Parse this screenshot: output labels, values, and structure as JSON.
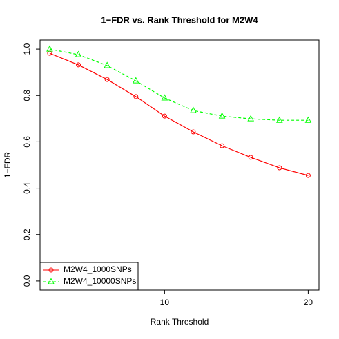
{
  "chart_data": {
    "type": "line",
    "title": "1−FDR vs. Rank Threshold for M2W4",
    "x_label": "Rank Threshold",
    "y_label": "1−FDR",
    "x": [
      2,
      4,
      6,
      8,
      10,
      12,
      14,
      16,
      18,
      20
    ],
    "series": [
      {
        "name": "M2W4_1000SNPs",
        "color": "#ff0000",
        "line_style": "solid",
        "marker": "circle",
        "values": [
          0.982,
          0.932,
          0.869,
          0.795,
          0.711,
          0.643,
          0.583,
          0.533,
          0.488,
          0.455
        ]
      },
      {
        "name": "M2W4_10000SNPs",
        "color": "#00ff00",
        "line_style": "dashed",
        "marker": "triangle",
        "values": [
          1.0,
          0.976,
          0.929,
          0.863,
          0.789,
          0.735,
          0.711,
          0.699,
          0.693,
          0.693
        ]
      }
    ],
    "xlim": [
      1.33,
      20.75
    ],
    "xticks": [
      10,
      20
    ],
    "ylim": [
      -0.039,
      1.039
    ],
    "yticks": [
      {
        "value": 0,
        "label": "0.0"
      },
      0.2,
      0.4,
      0.6,
      0.8,
      {
        "value": 1,
        "label": "1.0"
      }
    ],
    "legend": "bottom-left"
  }
}
